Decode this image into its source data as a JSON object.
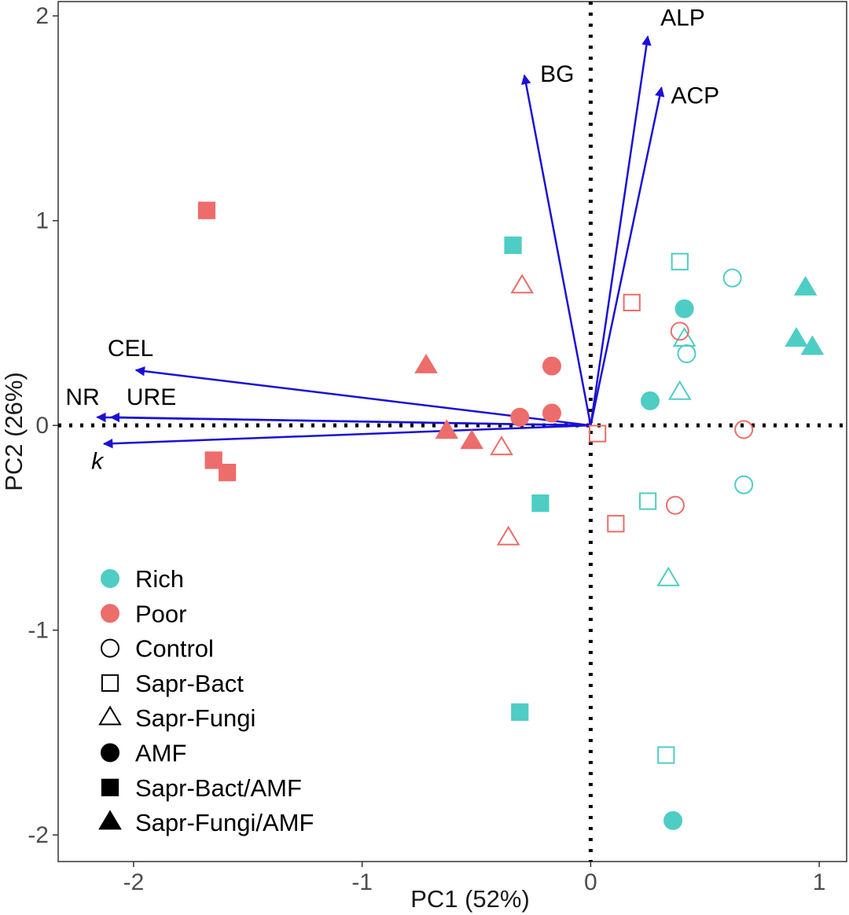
{
  "chart_data": {
    "type": "scatter",
    "title": "",
    "xlabel": "PC1 (52%)",
    "ylabel": "PC2 (26%)",
    "xlim": [
      -2.33,
      1.12
    ],
    "ylim": [
      -2.13,
      2.07
    ],
    "x_ticks": [
      -2,
      -1,
      0,
      1
    ],
    "y_ticks": [
      -2,
      -1,
      0,
      1,
      2
    ],
    "x_tick_labels": [
      "-2",
      "-1",
      "0",
      "1"
    ],
    "y_tick_labels": [
      "-2",
      "-1",
      "0",
      "1",
      "2"
    ],
    "reference_lines": {
      "x": 0,
      "y": 0,
      "style": "dotted"
    },
    "colors": {
      "Rich": "#4ecdc4",
      "Poor": "#ec6d6b",
      "arrow": "#1a0fd6"
    },
    "loadings": [
      {
        "label": "BG",
        "x": -0.29,
        "y": 1.71
      },
      {
        "label": "ALP",
        "x": 0.25,
        "y": 1.9
      },
      {
        "label": "ACP",
        "x": 0.31,
        "y": 1.65
      },
      {
        "label": "CEL",
        "x": -1.99,
        "y": 0.27
      },
      {
        "label": "NR",
        "x": -2.16,
        "y": 0.04
      },
      {
        "label": "URE",
        "x": -2.1,
        "y": 0.04
      },
      {
        "label": "k",
        "x": -2.13,
        "y": -0.09,
        "italic": true
      }
    ],
    "series": [
      {
        "name": "Rich Control",
        "nutrient": "Rich",
        "treatment": "Control",
        "points": [
          [
            0.62,
            0.72
          ],
          [
            0.42,
            0.35
          ],
          [
            0.67,
            -0.29
          ]
        ]
      },
      {
        "name": "Rich Sapr-Bact",
        "nutrient": "Rich",
        "treatment": "Sapr-Bact",
        "points": [
          [
            0.39,
            0.8
          ],
          [
            0.25,
            -0.37
          ],
          [
            0.33,
            -1.61
          ]
        ]
      },
      {
        "name": "Rich Sapr-Fungi",
        "nutrient": "Rich",
        "treatment": "Sapr-Fungi",
        "points": [
          [
            0.41,
            0.42
          ],
          [
            0.39,
            0.16
          ],
          [
            0.34,
            -0.75
          ]
        ]
      },
      {
        "name": "Rich AMF",
        "nutrient": "Rich",
        "treatment": "AMF",
        "points": [
          [
            0.41,
            0.57
          ],
          [
            0.26,
            0.12
          ],
          [
            0.36,
            -1.93
          ]
        ]
      },
      {
        "name": "Rich Sapr-Bact/AMF",
        "nutrient": "Rich",
        "treatment": "Sapr-Bact/AMF",
        "points": [
          [
            -0.34,
            0.88
          ],
          [
            -0.22,
            -0.38
          ],
          [
            -0.31,
            -1.4
          ]
        ]
      },
      {
        "name": "Rich Sapr-Fungi/AMF",
        "nutrient": "Rich",
        "treatment": "Sapr-Fungi/AMF",
        "points": [
          [
            0.94,
            0.67
          ],
          [
            0.9,
            0.42
          ],
          [
            0.97,
            0.38
          ]
        ]
      },
      {
        "name": "Poor Control",
        "nutrient": "Poor",
        "treatment": "Control",
        "points": [
          [
            0.39,
            0.46
          ],
          [
            0.67,
            -0.02
          ],
          [
            0.37,
            -0.39
          ]
        ]
      },
      {
        "name": "Poor Sapr-Bact",
        "nutrient": "Poor",
        "treatment": "Sapr-Bact",
        "points": [
          [
            0.18,
            0.6
          ],
          [
            0.03,
            -0.04
          ],
          [
            0.11,
            -0.48
          ]
        ]
      },
      {
        "name": "Poor Sapr-Fungi",
        "nutrient": "Poor",
        "treatment": "Sapr-Fungi",
        "points": [
          [
            -0.3,
            0.68
          ],
          [
            -0.39,
            -0.11
          ],
          [
            -0.36,
            -0.55
          ]
        ]
      },
      {
        "name": "Poor AMF",
        "nutrient": "Poor",
        "treatment": "AMF",
        "points": [
          [
            -0.17,
            0.29
          ],
          [
            -0.31,
            0.04
          ],
          [
            -0.17,
            0.06
          ]
        ]
      },
      {
        "name": "Poor Sapr-Bact/AMF",
        "nutrient": "Poor",
        "treatment": "Sapr-Bact/AMF",
        "points": [
          [
            -1.68,
            1.05
          ],
          [
            -1.65,
            -0.17
          ],
          [
            -1.59,
            -0.23
          ]
        ]
      },
      {
        "name": "Poor Sapr-Fungi/AMF",
        "nutrient": "Poor",
        "treatment": "Sapr-Fungi/AMF",
        "points": [
          [
            -0.72,
            0.29
          ],
          [
            -0.63,
            -0.03
          ],
          [
            -0.52,
            -0.08
          ]
        ]
      }
    ],
    "legend": {
      "position": "bottom-left",
      "entries": [
        {
          "label": "Rich",
          "shape": "circle",
          "filled": true,
          "color": "#4ecdc4"
        },
        {
          "label": "Poor",
          "shape": "circle",
          "filled": true,
          "color": "#ec6d6b"
        },
        {
          "label": "Control",
          "shape": "circle",
          "filled": false,
          "color": "#000000"
        },
        {
          "label": "Sapr-Bact",
          "shape": "square",
          "filled": false,
          "color": "#000000"
        },
        {
          "label": "Sapr-Fungi",
          "shape": "triangle",
          "filled": false,
          "color": "#000000"
        },
        {
          "label": "AMF",
          "shape": "circle",
          "filled": true,
          "color": "#000000"
        },
        {
          "label": "Sapr-Bact/AMF",
          "shape": "square",
          "filled": true,
          "color": "#000000"
        },
        {
          "label": "Sapr-Fungi/AMF",
          "shape": "triangle",
          "filled": true,
          "color": "#000000"
        }
      ]
    }
  }
}
